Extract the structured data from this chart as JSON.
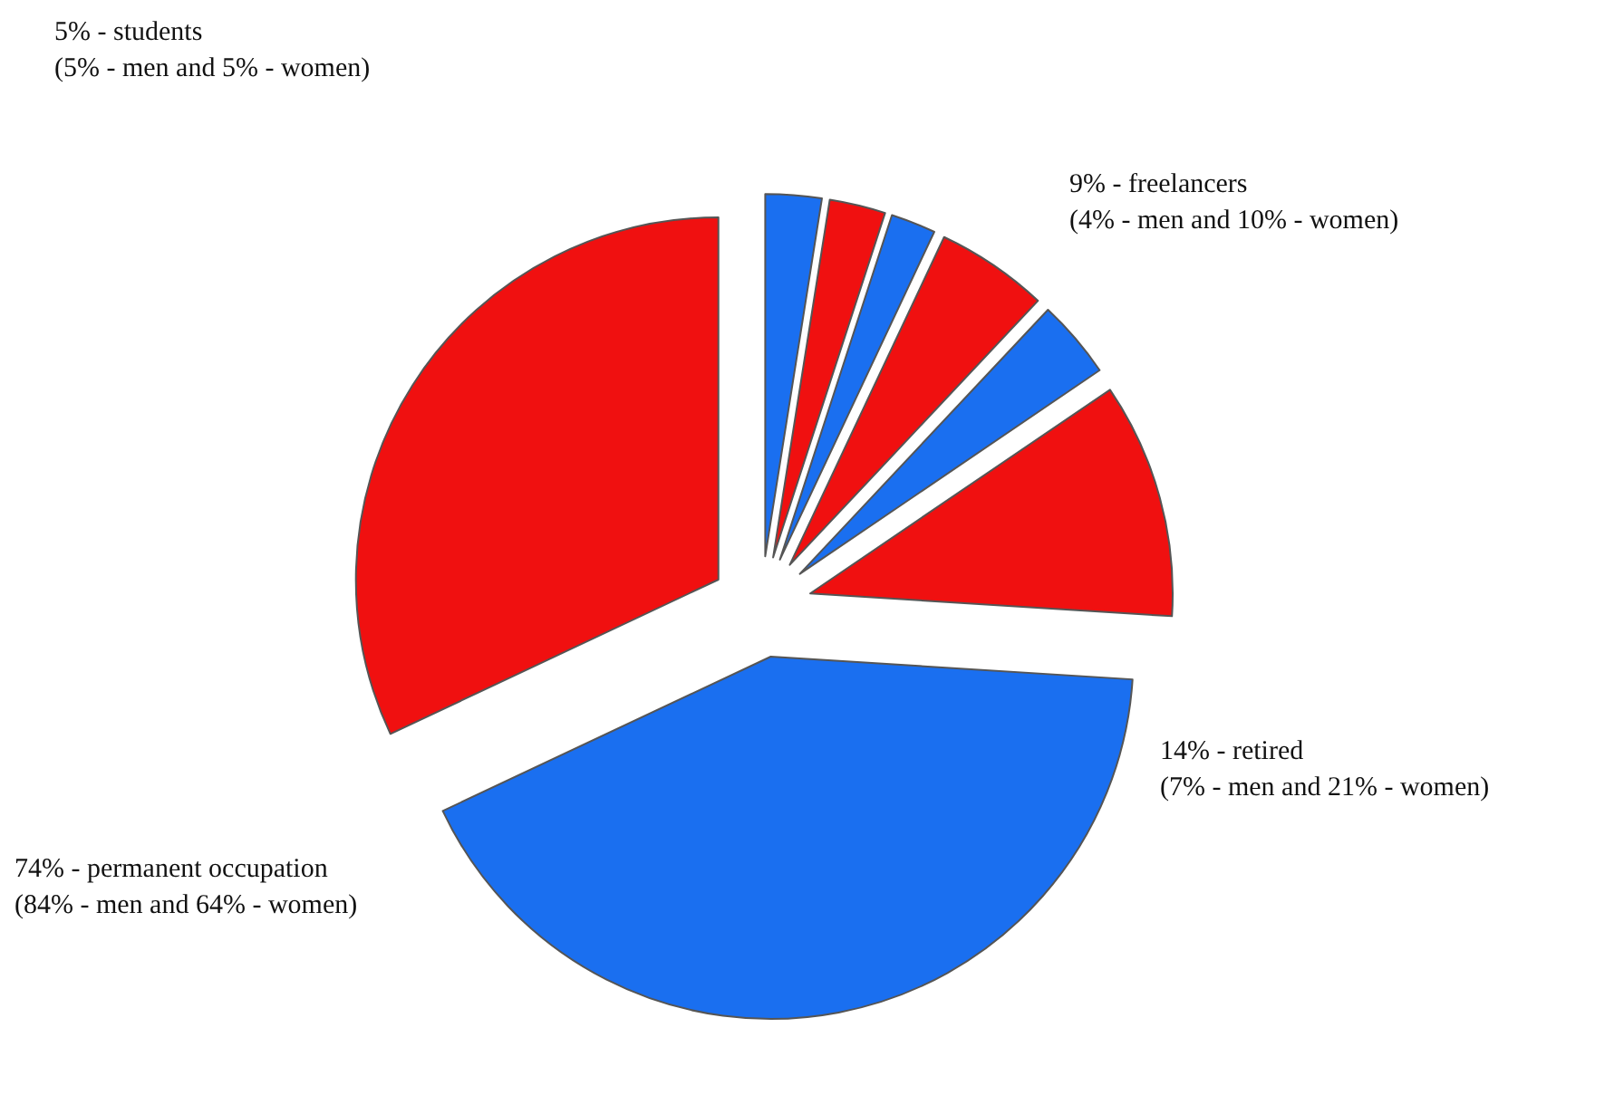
{
  "chart_data": {
    "type": "pie",
    "categories": [
      null,
      null,
      null,
      null,
      null,
      null,
      null,
      null
    ],
    "values": [
      2.5,
      2.5,
      2,
      5,
      3.5,
      10.5,
      42,
      32
    ],
    "colors": [
      "#1a6ff0",
      "#f01010",
      "#1a6ff0",
      "#f01010",
      "#1a6ff0",
      "#f01010",
      "#1a6ff0",
      "#f01010"
    ],
    "annotations": [
      "5% - students\n(5% - men and 5% - women)",
      "9% - freelancers\n(4% - men and 10% - women)",
      "14% - retired\n(7% - men and 21% - women)",
      "74% - permanent occupation\n(84% - men and 64% - women)"
    ]
  }
}
